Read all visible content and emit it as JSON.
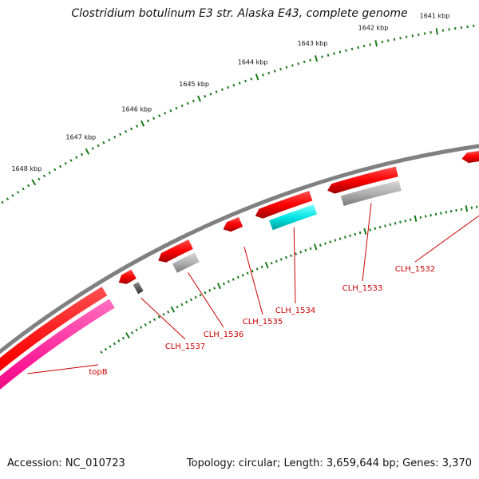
{
  "title": "Clostridium botulinum E3 str. Alaska E43, complete genome",
  "footer": {
    "accession": "Accession: NC_010723",
    "summary": "Topology: circular; Length: 3,659,644 bp; Genes: 3,370"
  },
  "ruler": {
    "labels": [
      "1641 kbp",
      "1642 kbp",
      "1643 kbp",
      "1644 kbp",
      "1645 kbp",
      "1646 kbp",
      "1647 kbp",
      "1648 kbp"
    ],
    "tick_color": "#1a7a1a"
  },
  "backbone_color": "#808080",
  "gene_labels": [
    "CLH_1532",
    "CLH_1533",
    "CLH_1534",
    "CLH_1535",
    "CLH_1536",
    "CLH_1537",
    "topB"
  ],
  "colors": {
    "gene_red": "#ff0000",
    "label_red": "#cc0000",
    "cds_pink_light": "#f08080",
    "cds_grey": "#b0b0b0",
    "cds_cyan": "#00e5e5",
    "cds_dark": "#606060",
    "cds_magenta": "#ff1493"
  }
}
